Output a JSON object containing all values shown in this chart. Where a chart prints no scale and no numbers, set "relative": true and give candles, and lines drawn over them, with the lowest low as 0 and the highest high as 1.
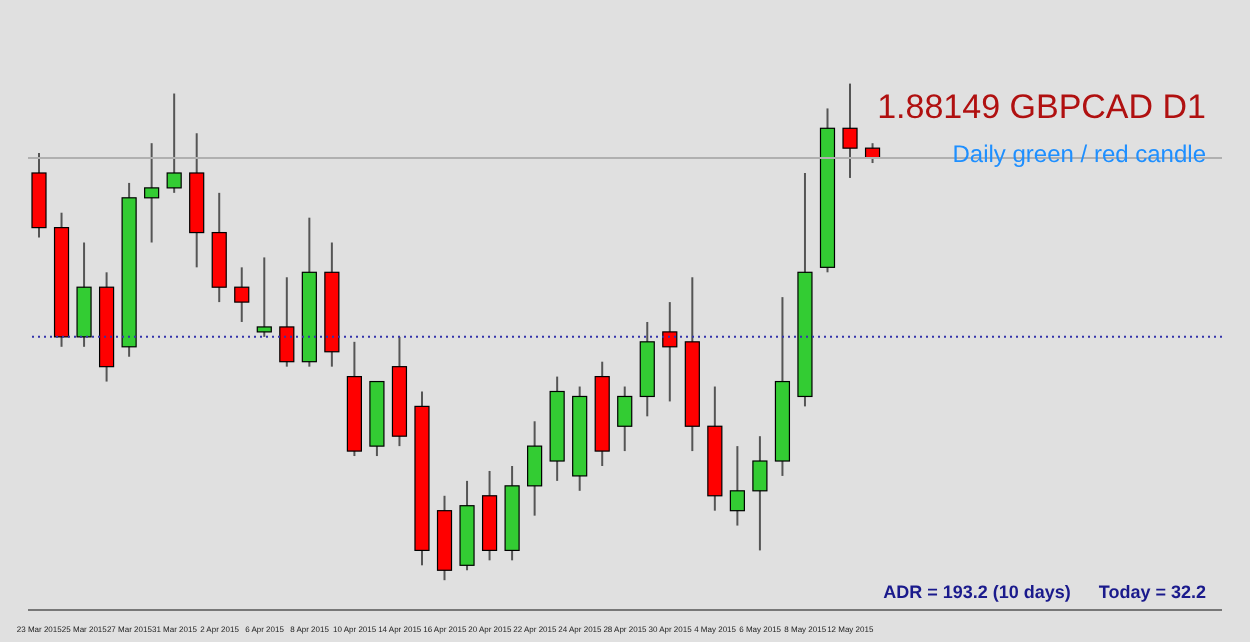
{
  "chart_data": {
    "type": "candlestick",
    "title": "1.88149 GBPCAD D1",
    "subtitle": "Daily green / red candle",
    "annotations": [
      "ADR = 193.2  (10 days)",
      "Today = 32.2"
    ],
    "relative": true,
    "categories": [
      "23 Mar 2015",
      null,
      "25 Mar 2015",
      null,
      "27 Mar 2015",
      null,
      "31 Mar 2015",
      null,
      "2 Apr 2015",
      null,
      "6 Apr 2015",
      null,
      "8 Apr 2015",
      null,
      "10 Apr 2015",
      null,
      "14 Apr 2015",
      null,
      "16 Apr 2015",
      null,
      "20 Apr 2015",
      null,
      "22 Apr 2015",
      null,
      "24 Apr 2015",
      null,
      "28 Apr 2015",
      null,
      "30 Apr 2015",
      null,
      "4 May 2015",
      null,
      "6 May 2015",
      null,
      "8 May 2015",
      null,
      "12 May 2015",
      null
    ],
    "ohlc": [
      [
        0.82,
        0.86,
        0.69,
        0.71
      ],
      [
        0.71,
        0.74,
        0.47,
        0.49
      ],
      [
        0.49,
        0.68,
        0.47,
        0.59
      ],
      [
        0.59,
        0.62,
        0.4,
        0.43
      ],
      [
        0.47,
        0.8,
        0.45,
        0.77
      ],
      [
        0.77,
        0.88,
        0.68,
        0.79
      ],
      [
        0.79,
        0.98,
        0.78,
        0.82
      ],
      [
        0.82,
        0.9,
        0.63,
        0.7
      ],
      [
        0.7,
        0.78,
        0.56,
        0.59
      ],
      [
        0.59,
        0.63,
        0.52,
        0.56
      ],
      [
        0.5,
        0.65,
        0.49,
        0.51
      ],
      [
        0.51,
        0.61,
        0.43,
        0.44
      ],
      [
        0.44,
        0.73,
        0.43,
        0.62
      ],
      [
        0.62,
        0.68,
        0.43,
        0.46
      ],
      [
        0.41,
        0.48,
        0.25,
        0.26
      ],
      [
        0.27,
        0.4,
        0.25,
        0.4
      ],
      [
        0.43,
        0.49,
        0.27,
        0.29
      ],
      [
        0.35,
        0.38,
        0.03,
        0.06
      ],
      [
        0.14,
        0.17,
        0,
        0.02
      ],
      [
        0.03,
        0.2,
        0.02,
        0.15
      ],
      [
        0.17,
        0.22,
        0.04,
        0.06
      ],
      [
        0.06,
        0.23,
        0.04,
        0.19
      ],
      [
        0.19,
        0.32,
        0.13,
        0.27
      ],
      [
        0.24,
        0.41,
        0.2,
        0.38
      ],
      [
        0.21,
        0.39,
        0.18,
        0.37
      ],
      [
        0.41,
        0.44,
        0.23,
        0.26
      ],
      [
        0.31,
        0.39,
        0.26,
        0.37
      ],
      [
        0.37,
        0.52,
        0.33,
        0.48
      ],
      [
        0.5,
        0.56,
        0.36,
        0.47
      ],
      [
        0.48,
        0.61,
        0.26,
        0.31
      ],
      [
        0.31,
        0.39,
        0.14,
        0.17
      ],
      [
        0.14,
        0.27,
        0.11,
        0.18
      ],
      [
        0.18,
        0.29,
        0.06,
        0.24
      ],
      [
        0.24,
        0.57,
        0.21,
        0.4
      ],
      [
        0.37,
        0.82,
        0.35,
        0.62
      ],
      [
        0.63,
        0.95,
        0.62,
        0.91
      ],
      [
        0.91,
        1.0,
        0.81,
        0.87
      ],
      [
        0.87,
        0.88,
        0.84,
        0.85
      ]
    ],
    "colors": [
      "#ff0000",
      "#ff0000",
      "#33cc33",
      "#ff0000",
      "#33cc33",
      "#33cc33",
      "#33cc33",
      "#ff0000",
      "#ff0000",
      "#ff0000",
      "#33cc33",
      "#ff0000",
      "#33cc33",
      "#ff0000",
      "#ff0000",
      "#33cc33",
      "#ff0000",
      "#ff0000",
      "#ff0000",
      "#33cc33",
      "#ff0000",
      "#33cc33",
      "#33cc33",
      "#33cc33",
      "#33cc33",
      "#ff0000",
      "#33cc33",
      "#33cc33",
      "#ff0000",
      "#ff0000",
      "#ff0000",
      "#33cc33",
      "#33cc33",
      "#33cc33",
      "#33cc33",
      "#33cc33",
      "#ff0000",
      "#ff0000"
    ],
    "ref_lines": [
      {
        "axis": "y",
        "value": 0.49,
        "color": "#3333aa",
        "line_style": "dotted"
      },
      {
        "axis": "y",
        "value": 0.85,
        "color": "#b0b0b0",
        "line_style": "solid"
      }
    ]
  }
}
